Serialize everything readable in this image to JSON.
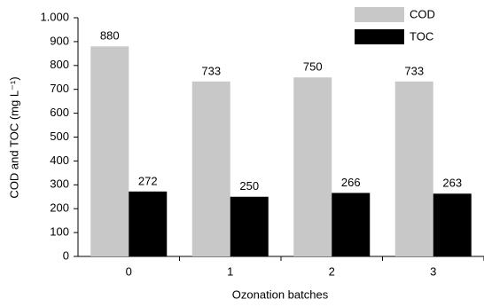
{
  "chart_data": {
    "type": "bar",
    "x_label": "Ozonation batches",
    "y_label": "COD and TOC (mg L⁻¹)",
    "categories": [
      "0",
      "1",
      "2",
      "3"
    ],
    "series": [
      {
        "name": "COD",
        "color": "#c8c8c8",
        "values": [
          880,
          733,
          750,
          733
        ]
      },
      {
        "name": "TOC",
        "color": "#000000",
        "values": [
          272,
          250,
          266,
          263
        ]
      }
    ],
    "ylim": [
      0,
      1000
    ],
    "yticks": [
      0,
      100,
      200,
      300,
      400,
      500,
      600,
      700,
      800,
      900,
      {
        "value": 1000,
        "label": "1.000"
      }
    ],
    "grid": false,
    "legend": "top-right"
  }
}
